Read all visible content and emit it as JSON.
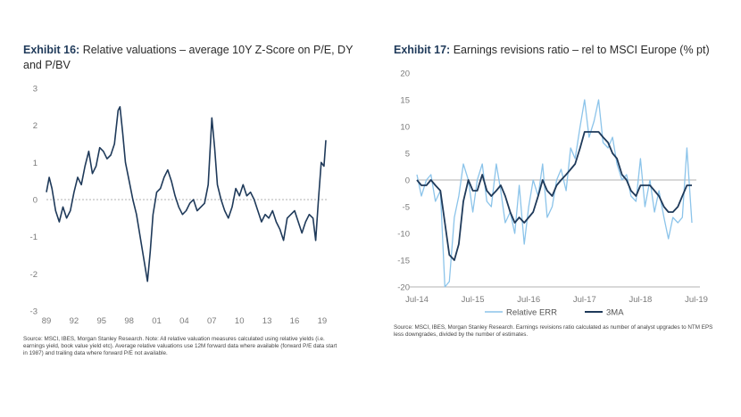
{
  "colors": {
    "dark_navy": "#1f3a5a",
    "light_blue": "#8cc4ea",
    "zero_line": "#b0b0b0",
    "tick": "#7a7a7a"
  },
  "left": {
    "title_bold": "Exhibit 16:",
    "title_rest": "Relative valuations – average 10Y Z-Score on P/E, DY and P/BV",
    "source": "Source: MSCI, IBES, Morgan Stanley Research. Note: All relative valuation measures calculated using relative yields (i.e. earnings yield, book value yield etc). Average relative valuations use 12M forward data where available (forward P/E data start in 1987) and trailing data where forward P/E not available.",
    "chart_data": {
      "type": "line",
      "xlabel": "",
      "ylabel": "",
      "ylim": [
        -3,
        3
      ],
      "y_ticks": [
        "3",
        "2",
        "1",
        "0",
        "-1",
        "-2",
        "-3"
      ],
      "x_ticks": [
        "89",
        "92",
        "95",
        "98",
        "01",
        "04",
        "07",
        "10",
        "13",
        "16",
        "19"
      ],
      "x_range": [
        1989,
        2019.5
      ],
      "zero_line": "dotted",
      "series": [
        {
          "name": "",
          "color": "#1f3a5a",
          "x": [
            1989.0,
            1989.3,
            1989.6,
            1990.0,
            1990.4,
            1990.8,
            1991.2,
            1991.6,
            1992.0,
            1992.4,
            1992.8,
            1993.2,
            1993.6,
            1994.0,
            1994.4,
            1994.8,
            1995.2,
            1995.6,
            1996.0,
            1996.4,
            1996.8,
            1997.0,
            1997.3,
            1997.6,
            1998.0,
            1998.4,
            1998.8,
            1999.2,
            1999.6,
            2000.0,
            2000.3,
            2000.6,
            2001.0,
            2001.4,
            2001.8,
            2002.2,
            2002.6,
            2003.0,
            2003.4,
            2003.8,
            2004.2,
            2004.6,
            2005.0,
            2005.4,
            2005.8,
            2006.2,
            2006.6,
            2007.0,
            2007.3,
            2007.6,
            2008.0,
            2008.4,
            2008.8,
            2009.2,
            2009.6,
            2010.0,
            2010.4,
            2010.8,
            2011.2,
            2011.6,
            2012.0,
            2012.4,
            2012.8,
            2013.2,
            2013.6,
            2014.0,
            2014.4,
            2014.8,
            2015.2,
            2015.6,
            2016.0,
            2016.4,
            2016.8,
            2017.2,
            2017.6,
            2018.0,
            2018.3,
            2018.6,
            2018.9,
            2019.2,
            2019.4
          ],
          "y": [
            0.2,
            0.6,
            0.3,
            -0.3,
            -0.6,
            -0.2,
            -0.5,
            -0.3,
            0.2,
            0.6,
            0.4,
            0.9,
            1.3,
            0.7,
            0.9,
            1.4,
            1.3,
            1.1,
            1.2,
            1.5,
            2.4,
            2.5,
            1.8,
            1.0,
            0.5,
            0.0,
            -0.4,
            -1.0,
            -1.6,
            -2.2,
            -1.4,
            -0.4,
            0.2,
            0.3,
            0.6,
            0.8,
            0.5,
            0.1,
            -0.2,
            -0.4,
            -0.3,
            -0.1,
            0.0,
            -0.3,
            -0.2,
            -0.1,
            0.4,
            2.2,
            1.4,
            0.4,
            0.0,
            -0.3,
            -0.5,
            -0.2,
            0.3,
            0.1,
            0.4,
            0.1,
            0.2,
            0.0,
            -0.3,
            -0.6,
            -0.4,
            -0.5,
            -0.3,
            -0.6,
            -0.8,
            -1.1,
            -0.5,
            -0.4,
            -0.3,
            -0.6,
            -0.9,
            -0.6,
            -0.4,
            -0.5,
            -1.1,
            0.0,
            1.0,
            0.9,
            1.6
          ]
        }
      ]
    }
  },
  "right": {
    "title_bold": "Exhibit 17:",
    "title_rest": "Earnings revisions ratio – rel to MSCI Europe (% pt)",
    "source": "Source: MSCI, IBES, Morgan Stanley Research. Earnings revisions ratio calculated as number of analyst upgrades to NTM EPS less downgrades, divided by the number of estimates.",
    "chart_data": {
      "type": "line",
      "xlabel": "",
      "ylabel": "",
      "ylim": [
        -20,
        20
      ],
      "y_ticks": [
        "20",
        "15",
        "10",
        "5",
        "0",
        "-5",
        "-10",
        "-15",
        "-20"
      ],
      "x_ticks": [
        "Jul-14",
        "Jul-15",
        "Jul-16",
        "Jul-17",
        "Jul-18",
        "Jul-19"
      ],
      "x_range": [
        2014.5,
        2019.5
      ],
      "legend": "bottom",
      "series": [
        {
          "name": "Relative ERR",
          "color": "#8cc4ea",
          "x": [
            2014.5,
            2014.58,
            2014.67,
            2014.75,
            2014.83,
            2014.92,
            2015.0,
            2015.08,
            2015.17,
            2015.25,
            2015.33,
            2015.42,
            2015.5,
            2015.58,
            2015.67,
            2015.75,
            2015.83,
            2015.92,
            2016.0,
            2016.08,
            2016.17,
            2016.25,
            2016.33,
            2016.42,
            2016.5,
            2016.58,
            2016.67,
            2016.75,
            2016.83,
            2016.92,
            2017.0,
            2017.08,
            2017.17,
            2017.25,
            2017.33,
            2017.42,
            2017.5,
            2017.58,
            2017.67,
            2017.75,
            2017.83,
            2017.92,
            2018.0,
            2018.08,
            2018.17,
            2018.25,
            2018.33,
            2018.42,
            2018.5,
            2018.58,
            2018.67,
            2018.75,
            2018.83,
            2018.92,
            2019.0,
            2019.08,
            2019.17,
            2019.25,
            2019.33,
            2019.42
          ],
          "y": [
            1,
            -3,
            0,
            1,
            -4,
            -2,
            -20,
            -19,
            -7,
            -3,
            3,
            0,
            -6,
            0,
            3,
            -4,
            -5,
            3,
            -2,
            -8,
            -6,
            -10,
            -1,
            -12,
            -5,
            0,
            -3,
            3,
            -7,
            -5,
            0,
            2,
            -2,
            6,
            4,
            10,
            15,
            8,
            11,
            15,
            7,
            6,
            8,
            3,
            0,
            1,
            -3,
            -4,
            4,
            -5,
            0,
            -6,
            -2,
            -7,
            -11,
            -7,
            -8,
            -7,
            6,
            -8
          ]
        },
        {
          "name": "3MA",
          "color": "#1f3a5a",
          "x": [
            2014.5,
            2014.58,
            2014.67,
            2014.75,
            2014.83,
            2014.92,
            2015.0,
            2015.08,
            2015.17,
            2015.25,
            2015.33,
            2015.42,
            2015.5,
            2015.58,
            2015.67,
            2015.75,
            2015.83,
            2015.92,
            2016.0,
            2016.08,
            2016.17,
            2016.25,
            2016.33,
            2016.42,
            2016.5,
            2016.58,
            2016.67,
            2016.75,
            2016.83,
            2016.92,
            2017.0,
            2017.08,
            2017.17,
            2017.25,
            2017.33,
            2017.42,
            2017.5,
            2017.58,
            2017.67,
            2017.75,
            2017.83,
            2017.92,
            2018.0,
            2018.08,
            2018.17,
            2018.25,
            2018.33,
            2018.42,
            2018.5,
            2018.58,
            2018.67,
            2018.75,
            2018.83,
            2018.92,
            2019.0,
            2019.08,
            2019.17,
            2019.25,
            2019.33,
            2019.42
          ],
          "y": [
            0,
            -1,
            -1,
            0,
            -1,
            -2,
            -8,
            -14,
            -15,
            -12,
            -4,
            0,
            -2,
            -2,
            1,
            -2,
            -3,
            -2,
            -1,
            -3,
            -6,
            -8,
            -7,
            -8,
            -7,
            -6,
            -3,
            0,
            -2,
            -3,
            -1,
            0,
            1,
            2,
            3,
            6,
            9,
            9,
            9,
            9,
            8,
            7,
            5,
            4,
            1,
            0,
            -2,
            -3,
            -1,
            -1,
            -1,
            -2,
            -3,
            -5,
            -6,
            -6,
            -5,
            -3,
            -1,
            -1
          ]
        }
      ]
    }
  }
}
